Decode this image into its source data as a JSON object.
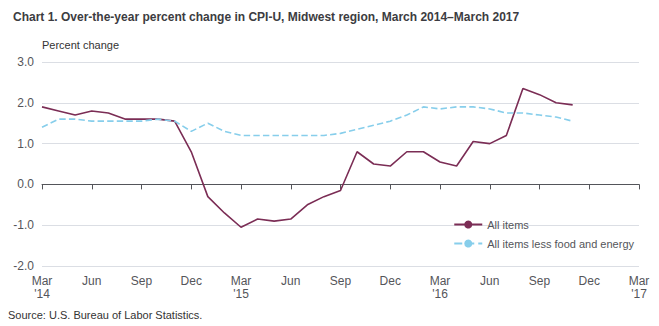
{
  "chart_data": {
    "type": "line",
    "title": "Chart 1. Over-the-year percent change in CPI-U, Midwest region, March 2014–March 2017",
    "ylabel": "Percent change",
    "source": "Source: U.S. Bureau of Labor Statistics.",
    "categories": [
      "Mar\n'14",
      null,
      null,
      "Jun",
      null,
      null,
      "Sep",
      null,
      null,
      "Dec",
      null,
      null,
      "Mar\n'15",
      null,
      null,
      "Jun",
      null,
      null,
      "Sep",
      null,
      null,
      "Dec",
      null,
      null,
      "Mar\n'16",
      null,
      null,
      "Jun",
      null,
      null,
      "Sep",
      null,
      null,
      "Dec",
      null,
      null,
      "Mar\n'17"
    ],
    "series": [
      {
        "name": "All items",
        "color": "#7B2D55",
        "line_style": "solid",
        "values": [
          1.9,
          1.8,
          1.7,
          1.8,
          1.75,
          1.6,
          1.6,
          1.6,
          1.55,
          0.8,
          -0.3,
          -0.7,
          -1.05,
          -0.85,
          -0.9,
          -0.85,
          -0.5,
          -0.3,
          -0.15,
          0.8,
          0.5,
          0.45,
          0.8,
          0.8,
          0.55,
          0.45,
          1.05,
          1.0,
          1.2,
          2.35,
          2.2,
          2.0,
          1.95,
          null,
          null,
          null,
          null
        ]
      },
      {
        "name": "All items less food and energy",
        "color": "#87CEEB",
        "line_style": "dashed",
        "values": [
          1.4,
          1.6,
          1.6,
          1.55,
          1.55,
          1.55,
          1.55,
          1.6,
          1.55,
          1.3,
          1.5,
          1.3,
          1.2,
          1.2,
          1.2,
          1.2,
          1.2,
          1.2,
          1.25,
          1.35,
          1.45,
          1.55,
          1.7,
          1.9,
          1.85,
          1.9,
          1.9,
          1.85,
          1.75,
          1.75,
          1.7,
          1.65,
          1.55,
          null,
          null,
          null,
          null
        ]
      }
    ],
    "ylim": [
      -2.0,
      3.0
    ],
    "yticks": [
      {
        "value": -2.0,
        "label": "-2.0"
      },
      {
        "value": -1.0,
        "label": "-1.0"
      },
      {
        "value": 0.0,
        "label": "0.0"
      },
      {
        "value": 1.0,
        "label": "1.0"
      },
      {
        "value": 2.0,
        "label": "2.0"
      },
      {
        "value": 3.0,
        "label": "3.0"
      }
    ],
    "grid": true,
    "legend": "lower right"
  }
}
